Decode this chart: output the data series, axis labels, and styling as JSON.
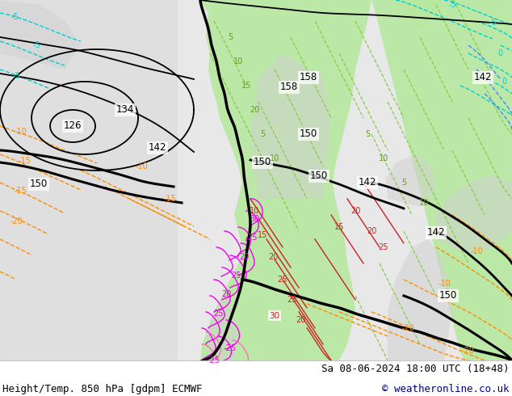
{
  "bottom_left_text": "Height/Temp. 850 hPa [gdpm] ECMWF",
  "bottom_right_text1": "Sa 08-06-2024 18:00 UTC (18+48)",
  "bottom_right_text2": "© weatheronline.co.uk",
  "bg_color": "#ffffff",
  "label_color": "#000000",
  "copyright_color": "#00008b",
  "font_size_label": 9,
  "fig_width": 6.34,
  "fig_height": 4.9,
  "dpi": 100
}
